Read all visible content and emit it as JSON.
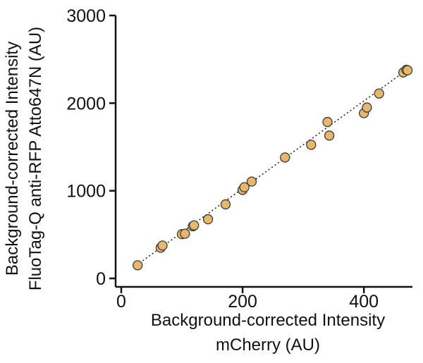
{
  "chart_data": {
    "type": "scatter",
    "xlabel_line1": "Background-corrected Intensity",
    "xlabel_line2": "mCherry (AU)",
    "ylabel_line1": "Background-corrected Intensity",
    "ylabel_line2": "FluoTag-Q anti-RFP Atto647N (AU)",
    "xlim": [
      0,
      480
    ],
    "ylim": [
      0,
      3000
    ],
    "x_ticks": [
      0,
      200,
      400
    ],
    "y_ticks": [
      0,
      1000,
      2000,
      3000
    ],
    "grid": false,
    "legend": "none",
    "marker_color": "#E8B86A",
    "marker_edge_color": "#3a3a3a",
    "fit_line": {
      "style": "dotted",
      "x": [
        25,
        475
      ],
      "y": [
        150,
        2400
      ]
    },
    "points": [
      {
        "x": 27,
        "y": 150
      },
      {
        "x": 65,
        "y": 350
      },
      {
        "x": 68,
        "y": 375
      },
      {
        "x": 100,
        "y": 505
      },
      {
        "x": 105,
        "y": 510
      },
      {
        "x": 118,
        "y": 595
      },
      {
        "x": 120,
        "y": 605
      },
      {
        "x": 143,
        "y": 675
      },
      {
        "x": 172,
        "y": 845
      },
      {
        "x": 200,
        "y": 1010
      },
      {
        "x": 203,
        "y": 1040
      },
      {
        "x": 215,
        "y": 1105
      },
      {
        "x": 270,
        "y": 1380
      },
      {
        "x": 313,
        "y": 1525
      },
      {
        "x": 340,
        "y": 1785
      },
      {
        "x": 343,
        "y": 1630
      },
      {
        "x": 400,
        "y": 1885
      },
      {
        "x": 405,
        "y": 1950
      },
      {
        "x": 425,
        "y": 2110
      },
      {
        "x": 465,
        "y": 2350
      },
      {
        "x": 470,
        "y": 2380
      },
      {
        "x": 472,
        "y": 2375
      }
    ]
  }
}
